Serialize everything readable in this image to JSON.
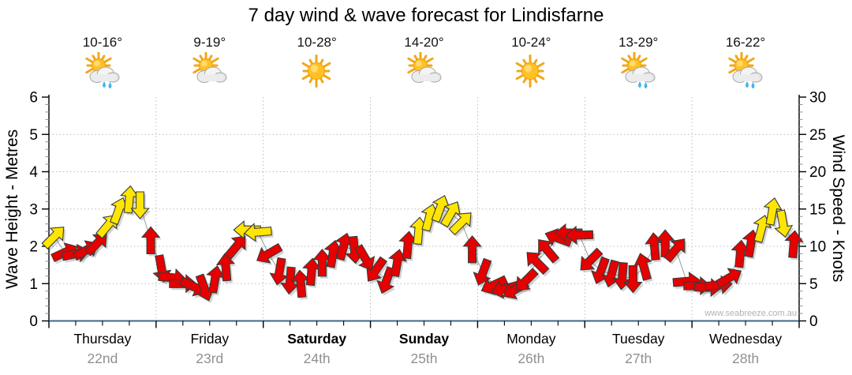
{
  "title": "7 day wind & wave forecast for Lindisfarne",
  "watermark": "www.seabreeze.com.au",
  "days": [
    {
      "name": "Thursday",
      "date": "22nd",
      "temp": "10-16°",
      "icon": "sun-cloud-rain",
      "bold": false
    },
    {
      "name": "Friday",
      "date": "23rd",
      "temp": "9-19°",
      "icon": "sun-cloud",
      "bold": false
    },
    {
      "name": "Saturday",
      "date": "24th",
      "temp": "10-28°",
      "icon": "sun",
      "bold": true
    },
    {
      "name": "Sunday",
      "date": "25th",
      "temp": "14-20°",
      "icon": "sun-cloud",
      "bold": true
    },
    {
      "name": "Monday",
      "date": "26th",
      "temp": "10-24°",
      "icon": "sun",
      "bold": false
    },
    {
      "name": "Tuesday",
      "date": "27th",
      "temp": "13-29°",
      "icon": "sun-cloud-rain",
      "bold": false
    },
    {
      "name": "Wednesday",
      "date": "28th",
      "temp": "16-22°",
      "icon": "sun-cloud-rain",
      "bold": false
    }
  ],
  "axes": {
    "left": {
      "title": "Wave Height - Metres",
      "ticks": [
        0,
        1,
        2,
        3,
        4,
        5,
        6
      ],
      "range": [
        0,
        6
      ]
    },
    "right": {
      "title": "Wind Speed - Knots",
      "ticks": [
        0,
        5,
        10,
        15,
        20,
        25,
        30
      ],
      "range": [
        0,
        30
      ]
    }
  },
  "chart_data": {
    "type": "wind-arrows",
    "description": "Arrow vertical position = wind speed (knots, right axis; 1 m wave = 5 kn). Arrow rotation = direction wind blows toward (0=N/up, 90=E/right). Color: yellow or red.",
    "x_days": 7,
    "arrows_per_day": 10,
    "colors": {
      "red": "#e60000",
      "yellow": "#ffe600",
      "outline": "#3a3a3a",
      "curve": "#9a9a9a"
    },
    "grid_color": "#bcbcbc",
    "bottom_axis_color": "#3a6a8e",
    "series": [
      {
        "day": "Thursday",
        "arrows": [
          [
            11.3,
            45,
            "y"
          ],
          [
            9.2,
            65,
            "r"
          ],
          [
            9.0,
            78,
            "r"
          ],
          [
            9.5,
            60,
            "r"
          ],
          [
            10.4,
            45,
            "r"
          ],
          [
            12.8,
            40,
            "y"
          ],
          [
            14.8,
            20,
            "y"
          ],
          [
            16.3,
            5,
            "y"
          ],
          [
            15.5,
            180,
            "y"
          ],
          [
            10.8,
            0,
            "r"
          ]
        ]
      },
      {
        "day": "Friday",
        "arrows": [
          [
            7.0,
            170,
            "r"
          ],
          [
            5.8,
            95,
            "r"
          ],
          [
            5.0,
            90,
            "r"
          ],
          [
            4.6,
            115,
            "r"
          ],
          [
            4.4,
            160,
            "r"
          ],
          [
            5.6,
            10,
            "r"
          ],
          [
            7.2,
            355,
            "r"
          ],
          [
            10.0,
            40,
            "r"
          ],
          [
            12.2,
            270,
            "y"
          ],
          [
            11.9,
            265,
            "y"
          ]
        ]
      },
      {
        "day": "Saturday",
        "arrows": [
          [
            9.0,
            240,
            "r"
          ],
          [
            6.6,
            190,
            "r"
          ],
          [
            5.4,
            185,
            "r"
          ],
          [
            5.0,
            355,
            "r"
          ],
          [
            6.6,
            5,
            "r"
          ],
          [
            7.8,
            0,
            "r"
          ],
          [
            9.0,
            10,
            "r"
          ],
          [
            10.0,
            15,
            "r"
          ],
          [
            9.5,
            175,
            "r"
          ],
          [
            8.4,
            150,
            "r"
          ]
        ]
      },
      {
        "day": "Sunday",
        "arrows": [
          [
            6.8,
            215,
            "r"
          ],
          [
            5.4,
            200,
            "r"
          ],
          [
            7.8,
            10,
            "r"
          ],
          [
            10.2,
            5,
            "r"
          ],
          [
            12.1,
            5,
            "y"
          ],
          [
            13.9,
            15,
            "y"
          ],
          [
            15.1,
            20,
            "y"
          ],
          [
            14.4,
            30,
            "y"
          ],
          [
            13.2,
            45,
            "y"
          ],
          [
            9.6,
            0,
            "r"
          ]
        ]
      },
      {
        "day": "Monday",
        "arrows": [
          [
            6.5,
            200,
            "r"
          ],
          [
            4.8,
            245,
            "r"
          ],
          [
            4.3,
            255,
            "r"
          ],
          [
            4.2,
            240,
            "r"
          ],
          [
            5.4,
            225,
            "r"
          ],
          [
            7.9,
            315,
            "r"
          ],
          [
            9.5,
            320,
            "r"
          ],
          [
            11.1,
            290,
            "r"
          ],
          [
            11.8,
            270,
            "r"
          ],
          [
            11.5,
            268,
            "r"
          ]
        ]
      },
      {
        "day": "Tuesday",
        "arrows": [
          [
            8.1,
            225,
            "r"
          ],
          [
            6.7,
            200,
            "r"
          ],
          [
            6.3,
            195,
            "r"
          ],
          [
            6.0,
            185,
            "r"
          ],
          [
            5.6,
            180,
            "r"
          ],
          [
            7.3,
            345,
            "r"
          ],
          [
            10.0,
            355,
            "r"
          ],
          [
            10.4,
            0,
            "r"
          ],
          [
            9.6,
            40,
            "r"
          ],
          [
            5.3,
            85,
            "r"
          ]
        ]
      },
      {
        "day": "Wednesday",
        "arrows": [
          [
            4.7,
            90,
            "r"
          ],
          [
            4.5,
            92,
            "r"
          ],
          [
            4.8,
            85,
            "r"
          ],
          [
            5.8,
            60,
            "r"
          ],
          [
            9.0,
            5,
            "r"
          ],
          [
            10.4,
            10,
            "r"
          ],
          [
            12.4,
            15,
            "y"
          ],
          [
            14.7,
            10,
            "y"
          ],
          [
            13.0,
            170,
            "y"
          ],
          [
            10.3,
            5,
            "r"
          ]
        ]
      }
    ]
  }
}
